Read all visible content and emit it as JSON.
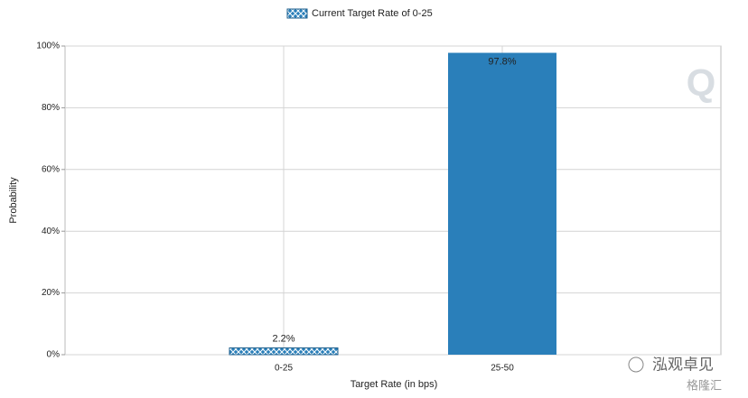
{
  "chart_data": {
    "type": "bar",
    "legend": {
      "label": "Current Target Rate of 0-25",
      "style": "hatched"
    },
    "x_label": "Target Rate (in bps)",
    "y_label": "Probability",
    "categories": [
      "0-25",
      "25-50"
    ],
    "values": [
      2.2,
      97.8
    ],
    "value_labels": [
      "2.2%",
      "97.8%"
    ],
    "bar_styles": [
      "hatched",
      "solid"
    ],
    "color": "#2a7fba",
    "ylim": [
      0,
      100
    ],
    "yticks": [
      {
        "value": 0,
        "label": "0%"
      },
      {
        "value": 20,
        "label": "20%"
      },
      {
        "value": 40,
        "label": "40%"
      },
      {
        "value": 60,
        "label": "60%"
      },
      {
        "value": 80,
        "label": "80%"
      },
      {
        "value": 100,
        "label": "100%"
      }
    ],
    "grid": true
  },
  "watermark": {
    "logo": "Q",
    "text": "泓观卓见",
    "source": "格隆汇"
  }
}
